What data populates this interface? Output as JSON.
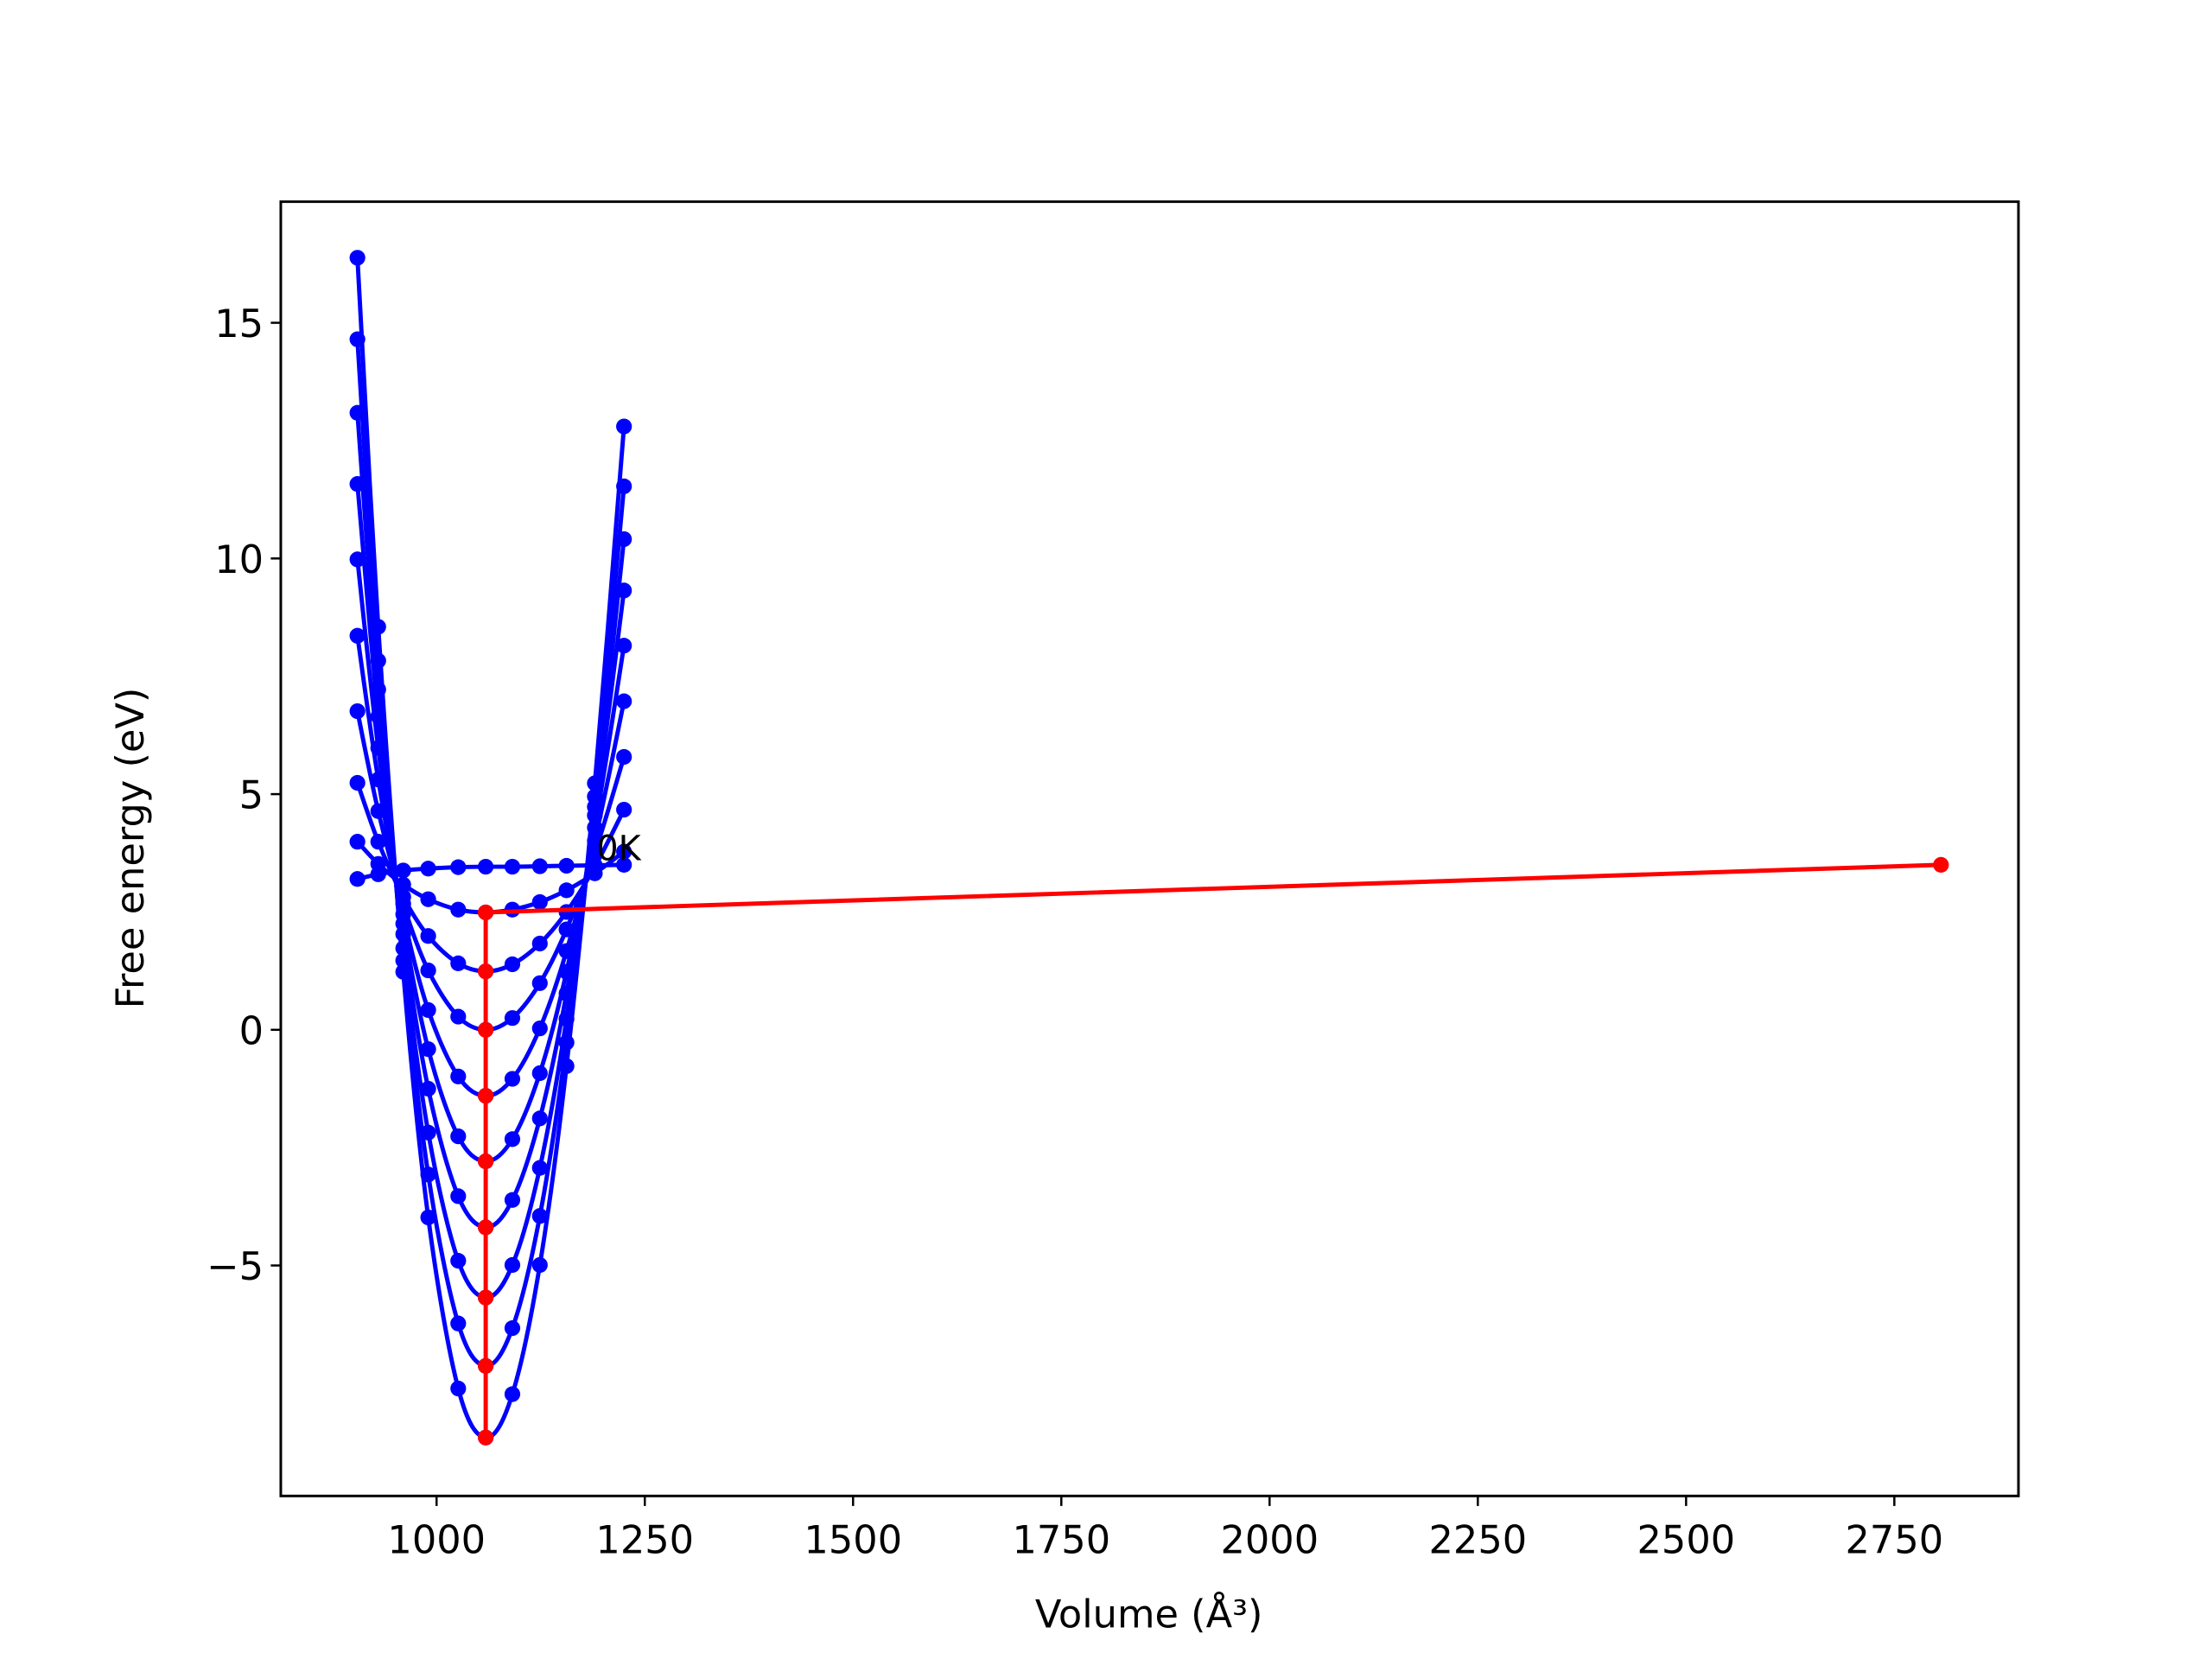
{
  "chart_data": {
    "type": "line",
    "x_label": "Volume (Å³)",
    "y_label": "Free energy (eV)",
    "xlim": [
      813,
      2899
    ],
    "ylim": [
      -9.89,
      17.57
    ],
    "xticks": [
      1000,
      1250,
      1500,
      1750,
      2000,
      2250,
      2500,
      2750
    ],
    "yticks": [
      {
        "value": -5,
        "label": "−5"
      },
      0,
      5,
      10,
      15
    ],
    "annotations": [
      {
        "text": "0K",
        "x": 1192,
        "y": 3.6
      }
    ],
    "series": [
      {
        "color": "#0000ff",
        "smooth": true,
        "x": [
          905,
          930,
          960,
          990,
          1026,
          1059,
          1091,
          1124,
          1156,
          1190,
          1225
        ],
        "values": [
          16.38,
          8.55,
          1.23,
          -3.98,
          -7.61,
          -8.65,
          -7.73,
          -4.99,
          -0.77,
          5.23,
          12.8
        ]
      },
      {
        "color": "#0000ff",
        "smooth": true,
        "x": [
          905,
          930,
          960,
          990,
          1026,
          1059,
          1091,
          1124,
          1156,
          1190,
          1225
        ],
        "values": [
          14.65,
          7.83,
          1.47,
          -3.07,
          -6.23,
          -7.13,
          -6.33,
          -3.95,
          -0.27,
          4.95,
          11.53
        ]
      },
      {
        "color": "#0000ff",
        "smooth": true,
        "x": [
          905,
          930,
          960,
          990,
          1026,
          1059,
          1091,
          1124,
          1156,
          1190,
          1225
        ],
        "values": [
          13.09,
          7.22,
          1.73,
          -2.18,
          -4.9,
          -5.68,
          -4.99,
          -2.93,
          0.23,
          4.73,
          10.41
        ]
      },
      {
        "color": "#0000ff",
        "smooth": true,
        "x": [
          905,
          930,
          960,
          990,
          1026,
          1059,
          1091,
          1124,
          1156,
          1190,
          1225
        ],
        "values": [
          11.58,
          6.65,
          2.03,
          -1.25,
          -3.53,
          -4.19,
          -3.61,
          -1.88,
          0.77,
          4.55,
          9.32
        ]
      },
      {
        "color": "#0000ff",
        "smooth": true,
        "x": [
          905,
          930,
          960,
          990,
          1026,
          1059,
          1091,
          1124,
          1156,
          1190,
          1225
        ],
        "values": [
          9.98,
          5.98,
          2.25,
          -0.41,
          -2.26,
          -2.79,
          -2.32,
          -0.92,
          1.23,
          4.29,
          8.15
        ]
      },
      {
        "color": "#0000ff",
        "smooth": true,
        "x": [
          905,
          930,
          960,
          990,
          1026,
          1059,
          1091,
          1124,
          1156,
          1190,
          1225
        ],
        "values": [
          8.36,
          5.31,
          2.45,
          0.42,
          -0.99,
          -1.4,
          -1.04,
          0.03,
          1.67,
          4.01,
          6.97
        ]
      },
      {
        "color": "#0000ff",
        "smooth": true,
        "x": [
          905,
          930,
          960,
          990,
          1026,
          1059,
          1091,
          1124,
          1156,
          1190,
          1225
        ],
        "values": [
          6.76,
          4.64,
          2.67,
          1.26,
          0.28,
          0,
          0.25,
          0.99,
          2.13,
          3.75,
          5.79
        ]
      },
      {
        "color": "#0000ff",
        "smooth": true,
        "x": [
          905,
          930,
          960,
          990,
          1026,
          1059,
          1091,
          1124,
          1156,
          1190,
          1225
        ],
        "values": [
          5.24,
          3.99,
          2.82,
          1.99,
          1.41,
          1.24,
          1.39,
          1.83,
          2.5,
          3.46,
          4.67
        ]
      },
      {
        "color": "#0000ff",
        "smooth": true,
        "x": [
          905,
          930,
          960,
          990,
          1026,
          1059,
          1091,
          1124,
          1156,
          1190,
          1225
        ],
        "values": [
          3.99,
          3.52,
          3.08,
          2.77,
          2.55,
          2.49,
          2.55,
          2.71,
          2.96,
          3.32,
          3.78
        ]
      },
      {
        "color": "#0000ff",
        "smooth": true,
        "x": [
          905,
          930,
          960,
          990,
          1026,
          1059,
          1091,
          1124,
          1156,
          1190,
          1225
        ],
        "values": [
          3.2,
          3.3,
          3.38,
          3.42,
          3.45,
          3.46,
          3.46,
          3.47,
          3.48,
          3.49,
          3.5
        ]
      },
      {
        "color": "#ff0000",
        "smooth": false,
        "x": [
          2806,
          1059,
          1059,
          1059,
          1059,
          1059,
          1059,
          1059,
          1059,
          1059
        ],
        "values": [
          3.5,
          2.49,
          1.24,
          0,
          -1.4,
          -2.79,
          -4.19,
          -5.68,
          -7.13,
          -8.65
        ]
      }
    ]
  }
}
